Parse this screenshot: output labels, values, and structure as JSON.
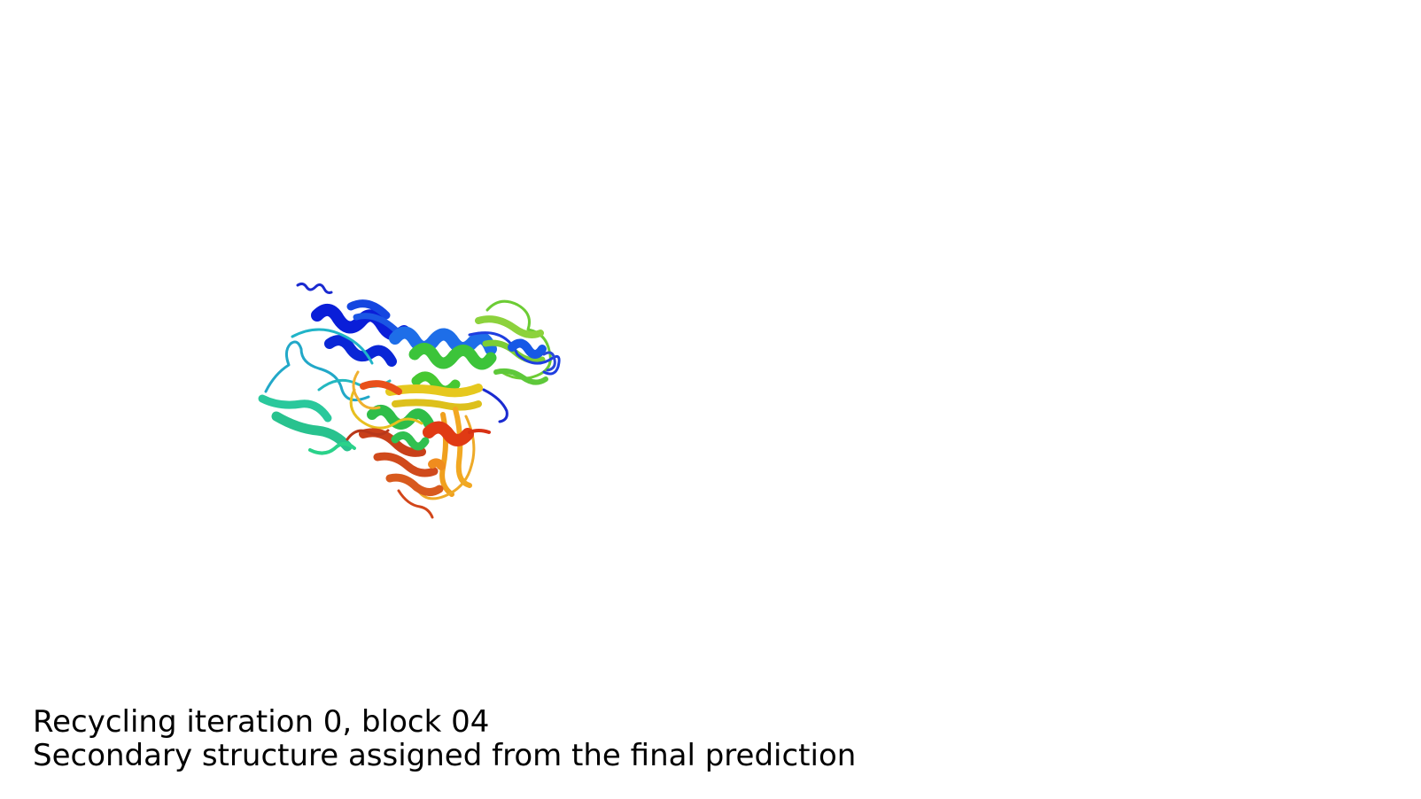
{
  "caption": {
    "line1": "Recycling iteration 0, block 04",
    "line2": "Secondary structure assigned from the final prediction"
  },
  "colors": {
    "background": "#ffffff",
    "caption_text": "#000000",
    "rainbow": [
      "#0a1ed8",
      "#1e6ee8",
      "#20b4c8",
      "#2ad28a",
      "#3cc43a",
      "#8cd23c",
      "#e6c81e",
      "#f0a01e",
      "#e8501a",
      "#d23210"
    ]
  }
}
